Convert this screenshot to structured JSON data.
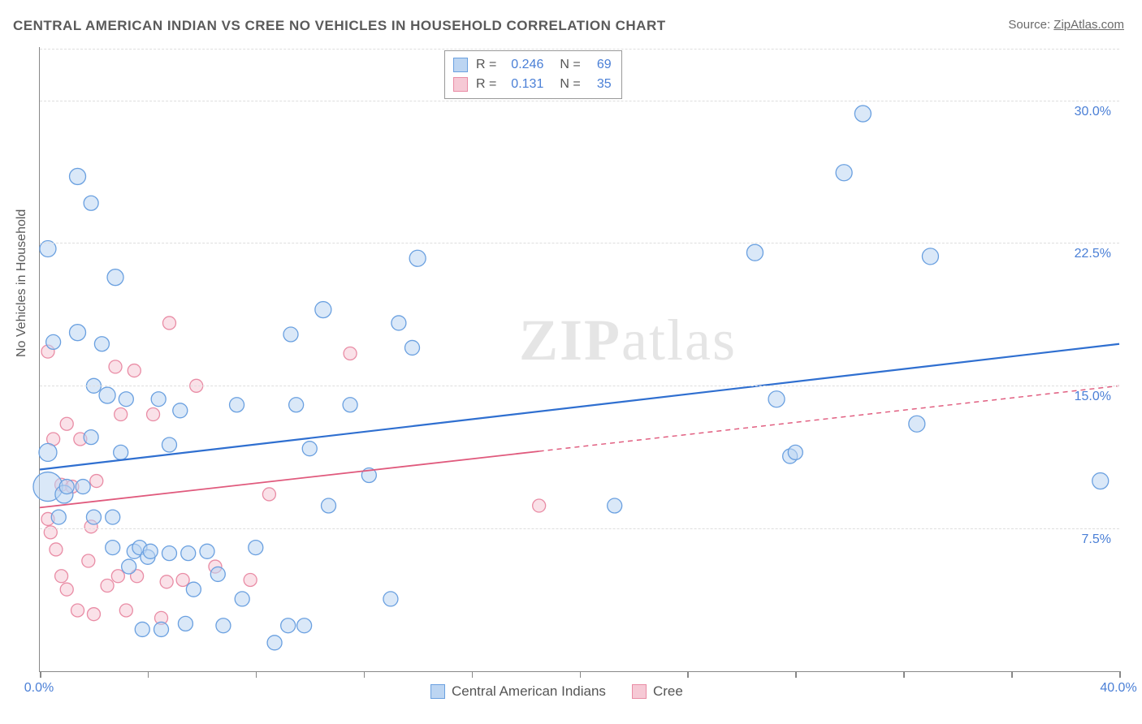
{
  "title": "CENTRAL AMERICAN INDIAN VS CREE NO VEHICLES IN HOUSEHOLD CORRELATION CHART",
  "source_label": "Source:",
  "source_name": "ZipAtlas.com",
  "yaxis_title": "No Vehicles in Household",
  "watermark_text_bold": "ZIP",
  "watermark_text_rest": "atlas",
  "chart": {
    "type": "scatter",
    "background_color": "#ffffff",
    "grid_color": "#dedede",
    "axis_color": "#888888",
    "xlim": [
      0,
      40
    ],
    "ylim": [
      0,
      32.8
    ],
    "x_ticks": [
      0,
      4,
      8,
      12,
      16,
      20,
      24,
      28,
      32,
      36,
      40
    ],
    "x_tick_labels": {
      "0": "0.0%",
      "40": "40.0%"
    },
    "y_gridlines": [
      7.5,
      15.0,
      22.5,
      30.0
    ],
    "y_tick_labels": [
      "7.5%",
      "15.0%",
      "22.5%",
      "30.0%"
    ],
    "marker_stroke_width": 1.3,
    "marker_opacity": 0.55,
    "default_radius": 9,
    "series": [
      {
        "name": "Central American Indians",
        "fill": "#bcd5f2",
        "stroke": "#6aa0e0",
        "R": "0.246",
        "N": "69",
        "trend": {
          "x1": 0,
          "y1": 10.6,
          "x2": 40,
          "y2": 17.2,
          "solid_until_x": 40,
          "stroke": "#2f6fd0",
          "width": 2.2
        },
        "points": [
          {
            "x": 0.3,
            "y": 22.2,
            "r": 10
          },
          {
            "x": 0.3,
            "y": 9.7,
            "r": 18
          },
          {
            "x": 0.3,
            "y": 11.5,
            "r": 11
          },
          {
            "x": 0.5,
            "y": 17.3
          },
          {
            "x": 0.7,
            "y": 8.1
          },
          {
            "x": 0.9,
            "y": 9.3,
            "r": 11
          },
          {
            "x": 1.0,
            "y": 9.7
          },
          {
            "x": 1.4,
            "y": 26.0,
            "r": 10
          },
          {
            "x": 1.4,
            "y": 17.8,
            "r": 10
          },
          {
            "x": 1.6,
            "y": 9.7
          },
          {
            "x": 1.9,
            "y": 24.6
          },
          {
            "x": 1.9,
            "y": 12.3
          },
          {
            "x": 2.0,
            "y": 8.1
          },
          {
            "x": 2.0,
            "y": 15.0
          },
          {
            "x": 2.3,
            "y": 17.2
          },
          {
            "x": 2.5,
            "y": 14.5,
            "r": 10
          },
          {
            "x": 2.7,
            "y": 6.5
          },
          {
            "x": 2.7,
            "y": 8.1
          },
          {
            "x": 2.8,
            "y": 20.7,
            "r": 10
          },
          {
            "x": 3.0,
            "y": 11.5
          },
          {
            "x": 3.2,
            "y": 14.3
          },
          {
            "x": 3.3,
            "y": 5.5
          },
          {
            "x": 3.5,
            "y": 6.3
          },
          {
            "x": 3.7,
            "y": 6.5
          },
          {
            "x": 3.8,
            "y": 2.2
          },
          {
            "x": 4.0,
            "y": 6.0
          },
          {
            "x": 4.1,
            "y": 6.3
          },
          {
            "x": 4.4,
            "y": 14.3
          },
          {
            "x": 4.5,
            "y": 2.2
          },
          {
            "x": 4.8,
            "y": 6.2
          },
          {
            "x": 4.8,
            "y": 11.9
          },
          {
            "x": 5.2,
            "y": 13.7
          },
          {
            "x": 5.4,
            "y": 2.5
          },
          {
            "x": 5.5,
            "y": 6.2
          },
          {
            "x": 5.7,
            "y": 4.3
          },
          {
            "x": 6.2,
            "y": 6.3
          },
          {
            "x": 6.6,
            "y": 5.1
          },
          {
            "x": 6.8,
            "y": 2.4
          },
          {
            "x": 7.3,
            "y": 14.0
          },
          {
            "x": 7.5,
            "y": 3.8
          },
          {
            "x": 8.0,
            "y": 6.5
          },
          {
            "x": 8.7,
            "y": 1.5
          },
          {
            "x": 9.2,
            "y": 2.4
          },
          {
            "x": 9.3,
            "y": 17.7
          },
          {
            "x": 9.5,
            "y": 14.0
          },
          {
            "x": 9.8,
            "y": 2.4
          },
          {
            "x": 10.0,
            "y": 11.7
          },
          {
            "x": 10.5,
            "y": 19.0,
            "r": 10
          },
          {
            "x": 10.7,
            "y": 8.7
          },
          {
            "x": 11.5,
            "y": 14.0
          },
          {
            "x": 12.2,
            "y": 10.3
          },
          {
            "x": 13.0,
            "y": 3.8
          },
          {
            "x": 13.3,
            "y": 18.3
          },
          {
            "x": 13.8,
            "y": 17.0
          },
          {
            "x": 14.0,
            "y": 21.7,
            "r": 10
          },
          {
            "x": 21.3,
            "y": 8.7
          },
          {
            "x": 26.5,
            "y": 22.0,
            "r": 10
          },
          {
            "x": 27.3,
            "y": 14.3,
            "r": 10
          },
          {
            "x": 27.8,
            "y": 11.3
          },
          {
            "x": 28.0,
            "y": 11.5
          },
          {
            "x": 29.8,
            "y": 26.2,
            "r": 10
          },
          {
            "x": 30.5,
            "y": 29.3,
            "r": 10
          },
          {
            "x": 32.5,
            "y": 13.0,
            "r": 10
          },
          {
            "x": 33.0,
            "y": 21.8,
            "r": 10
          },
          {
            "x": 39.3,
            "y": 10.0,
            "r": 10
          }
        ]
      },
      {
        "name": "Cree",
        "fill": "#f6c9d5",
        "stroke": "#e98ca5",
        "R": "0.131",
        "N": "35",
        "trend": {
          "x1": 0,
          "y1": 8.6,
          "x2": 40,
          "y2": 15.0,
          "solid_until_x": 18.5,
          "stroke": "#e05a7d",
          "width": 1.8
        },
        "points": [
          {
            "x": 0.3,
            "y": 16.8,
            "r": 8
          },
          {
            "x": 0.3,
            "y": 8.0,
            "r": 8
          },
          {
            "x": 0.4,
            "y": 7.3,
            "r": 8
          },
          {
            "x": 0.5,
            "y": 12.2,
            "r": 8
          },
          {
            "x": 0.6,
            "y": 6.4,
            "r": 8
          },
          {
            "x": 0.8,
            "y": 9.8,
            "r": 8
          },
          {
            "x": 0.8,
            "y": 5.0,
            "r": 8
          },
          {
            "x": 1.0,
            "y": 4.3,
            "r": 8
          },
          {
            "x": 1.0,
            "y": 13.0,
            "r": 8
          },
          {
            "x": 1.2,
            "y": 9.7,
            "r": 8
          },
          {
            "x": 1.4,
            "y": 3.2,
            "r": 8
          },
          {
            "x": 1.5,
            "y": 12.2,
            "r": 8
          },
          {
            "x": 1.8,
            "y": 5.8,
            "r": 8
          },
          {
            "x": 1.9,
            "y": 7.6,
            "r": 8
          },
          {
            "x": 2.0,
            "y": 3.0,
            "r": 8
          },
          {
            "x": 2.1,
            "y": 10.0,
            "r": 8
          },
          {
            "x": 2.5,
            "y": 4.5,
            "r": 8
          },
          {
            "x": 2.8,
            "y": 16.0,
            "r": 8
          },
          {
            "x": 2.9,
            "y": 5.0,
            "r": 8
          },
          {
            "x": 3.0,
            "y": 13.5,
            "r": 8
          },
          {
            "x": 3.2,
            "y": 3.2,
            "r": 8
          },
          {
            "x": 3.5,
            "y": 15.8,
            "r": 8
          },
          {
            "x": 3.6,
            "y": 5.0,
            "r": 8
          },
          {
            "x": 4.2,
            "y": 13.5,
            "r": 8
          },
          {
            "x": 4.5,
            "y": 2.8,
            "r": 8
          },
          {
            "x": 4.7,
            "y": 4.7,
            "r": 8
          },
          {
            "x": 4.8,
            "y": 18.3,
            "r": 8
          },
          {
            "x": 5.3,
            "y": 4.8,
            "r": 8
          },
          {
            "x": 5.8,
            "y": 15.0,
            "r": 8
          },
          {
            "x": 6.5,
            "y": 5.5,
            "r": 8
          },
          {
            "x": 7.8,
            "y": 4.8,
            "r": 8
          },
          {
            "x": 8.5,
            "y": 9.3,
            "r": 8
          },
          {
            "x": 11.5,
            "y": 16.7,
            "r": 8
          },
          {
            "x": 18.5,
            "y": 8.7,
            "r": 8
          }
        ]
      }
    ]
  },
  "legend_series": [
    {
      "label": "Central American Indians",
      "fill": "#bcd5f2",
      "stroke": "#6aa0e0"
    },
    {
      "label": "Cree",
      "fill": "#f6c9d5",
      "stroke": "#e98ca5"
    }
  ]
}
